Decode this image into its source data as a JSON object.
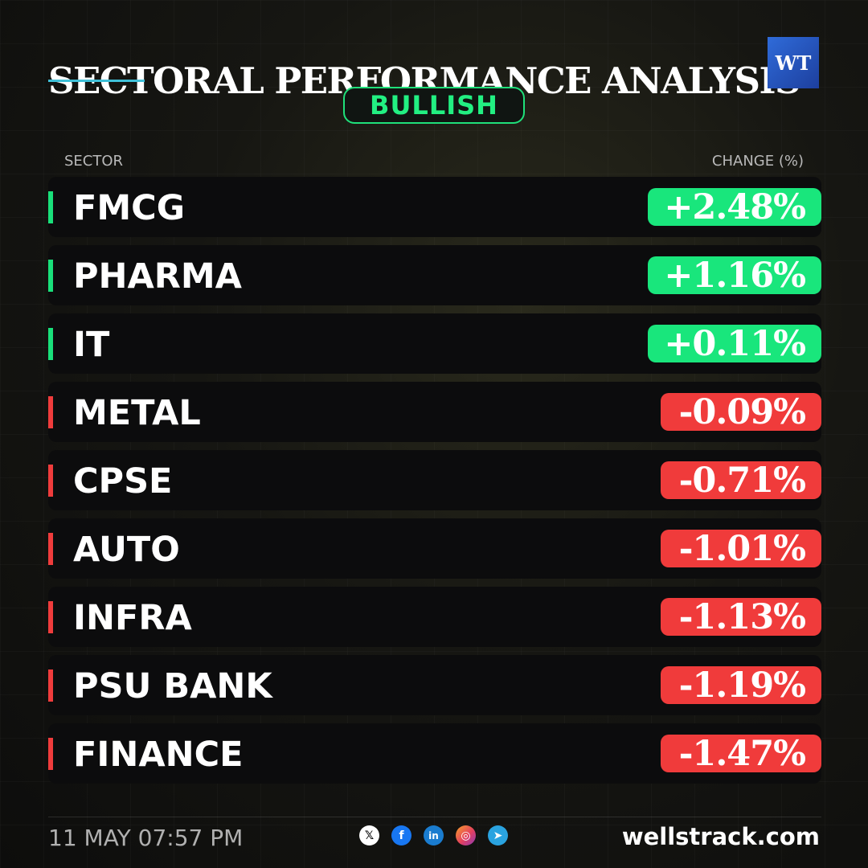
{
  "header": {
    "title": "SECTORAL PERFORMANCE ANALYSIS",
    "badge": "BULLISH",
    "logo_text": "WT"
  },
  "table": {
    "col_sector": "SECTOR",
    "col_change": "CHANGE (%)",
    "rows": [
      {
        "sector": "FMCG",
        "change": "+2.48%",
        "direction": "up"
      },
      {
        "sector": "PHARMA",
        "change": "+1.16%",
        "direction": "up"
      },
      {
        "sector": "IT",
        "change": "+0.11%",
        "direction": "up"
      },
      {
        "sector": "METAL",
        "change": "-0.09%",
        "direction": "down"
      },
      {
        "sector": "CPSE",
        "change": "-0.71%",
        "direction": "down"
      },
      {
        "sector": "AUTO",
        "change": "-1.01%",
        "direction": "down"
      },
      {
        "sector": "INFRA",
        "change": "-1.13%",
        "direction": "down"
      },
      {
        "sector": "PSU BANK",
        "change": "-1.19%",
        "direction": "down"
      },
      {
        "sector": "FINANCE",
        "change": "-1.47%",
        "direction": "down"
      }
    ]
  },
  "footer": {
    "timestamp": "11 MAY 07:57 PM",
    "website": "wellstrack.com",
    "socials": [
      "x-icon",
      "facebook-icon",
      "linkedin-icon",
      "instagram-icon",
      "telegram-icon"
    ]
  },
  "colors": {
    "positive": "#19e67c",
    "negative": "#f03b3b",
    "badge": "#22f082"
  }
}
